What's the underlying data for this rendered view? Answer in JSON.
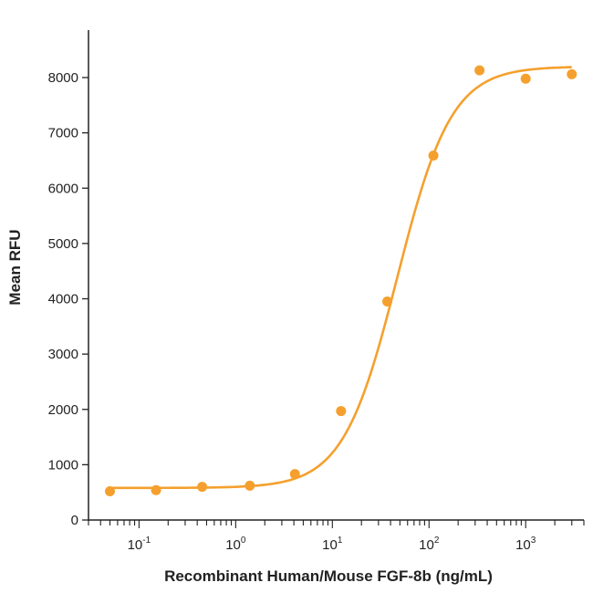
{
  "chart_data": {
    "type": "scatter",
    "xscale": "log",
    "xlabel": "Recombinant Human/Mouse FGF-8b (ng/mL)",
    "ylabel": "Mean RFU",
    "xlim": [
      0.03,
      4000
    ],
    "ylim": [
      0,
      9000
    ],
    "y_ticks": [
      0,
      1000,
      2000,
      3000,
      4000,
      5000,
      6000,
      7000,
      8000
    ],
    "x_ticks": [
      {
        "base": "10",
        "exp": "-1",
        "value": 0.1
      },
      {
        "base": "10",
        "exp": "0",
        "value": 1
      },
      {
        "base": "10",
        "exp": "1",
        "value": 10
      },
      {
        "base": "10",
        "exp": "2",
        "value": 100
      },
      {
        "base": "10",
        "exp": "3",
        "value": 1000
      }
    ],
    "points": [
      {
        "x": 0.05,
        "y": 520
      },
      {
        "x": 0.15,
        "y": 540
      },
      {
        "x": 0.45,
        "y": 600
      },
      {
        "x": 1.4,
        "y": 620
      },
      {
        "x": 4.1,
        "y": 830
      },
      {
        "x": 12.3,
        "y": 1970
      },
      {
        "x": 37,
        "y": 3950
      },
      {
        "x": 111,
        "y": 6590
      },
      {
        "x": 333,
        "y": 8130
      },
      {
        "x": 1000,
        "y": 7980
      },
      {
        "x": 3000,
        "y": 8060
      }
    ],
    "fit": {
      "model": "4PL",
      "bottom": 580,
      "top": 8200,
      "ec50": 47,
      "hill": 1.55,
      "x_range": [
        0.05,
        3000
      ]
    },
    "color": "#F5A02E",
    "grid": false,
    "legend": "none"
  }
}
